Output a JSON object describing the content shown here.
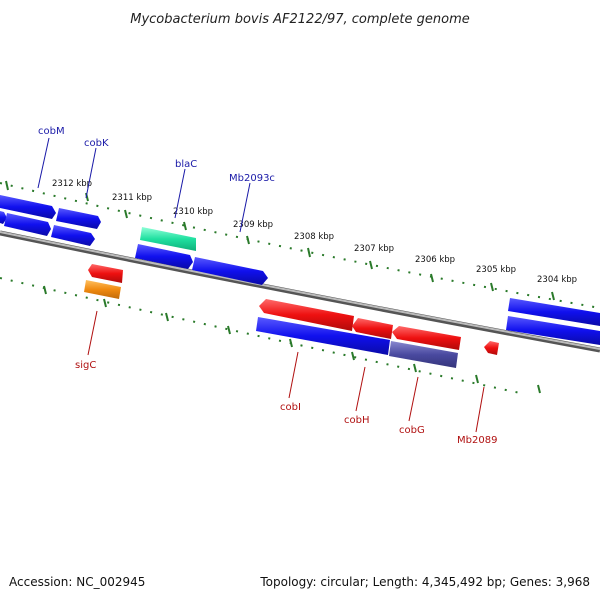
{
  "title": "Mycobacterium bovis AF2122/97, complete genome",
  "accession": "Accession: NC_002945",
  "stats": "Topology: circular; Length: 4,345,492 bp; Genes: 3,968",
  "ticks": [
    "2312 kbp",
    "2311 kbp",
    "2310 kbp",
    "2309 kbp",
    "2308 kbp",
    "2307 kbp",
    "2306 kbp",
    "2305 kbp",
    "2304 kbp"
  ],
  "forward_labels": [
    "cobM",
    "cobK",
    "blaC",
    "Mb2093c"
  ],
  "reverse_labels": [
    "sigC",
    "cobI",
    "cobH",
    "cobG",
    "Mb2089"
  ],
  "colors": {
    "forward_gene": "#1010ee",
    "reverse_gene": "#ee1010",
    "orange_feature": "#f08a10",
    "teal_feature": "#20e0a0",
    "purple_feature": "#4a4aa0",
    "backbone": "#888888",
    "tick": "#2a7a2a",
    "forward_label": "#1a1aa8",
    "reverse_label": "#b01010"
  }
}
